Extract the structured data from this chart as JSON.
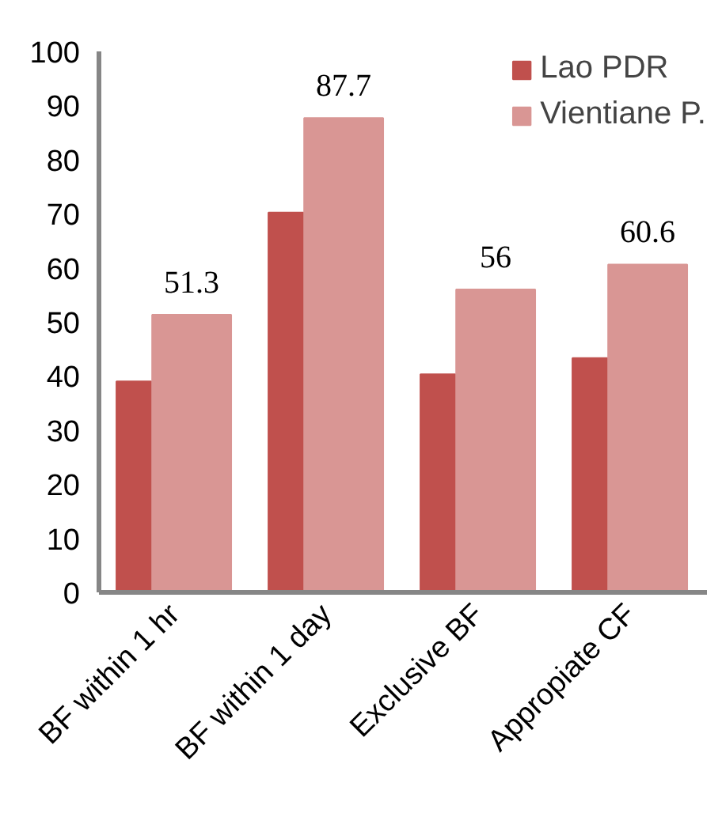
{
  "chart_data": {
    "type": "bar",
    "categories": [
      "BF within 1 hr",
      "BF within 1 day",
      "Exclusive BF",
      "Appropiate CF"
    ],
    "series": [
      {
        "name": "Lao PDR",
        "color": "#c0504d",
        "values": [
          39,
          70.2,
          40.3,
          43.3
        ]
      },
      {
        "name": "Vientiane P.",
        "color": "#d99694",
        "values": [
          51.3,
          87.7,
          56,
          60.6
        ],
        "value_labels": [
          "51.3",
          "87.7",
          "56",
          "60.6"
        ]
      }
    ],
    "ylim": [
      0,
      100
    ],
    "yticks": [
      0,
      10,
      20,
      30,
      40,
      50,
      60,
      70,
      80,
      90,
      100
    ],
    "grid": false,
    "legend": "top right"
  }
}
